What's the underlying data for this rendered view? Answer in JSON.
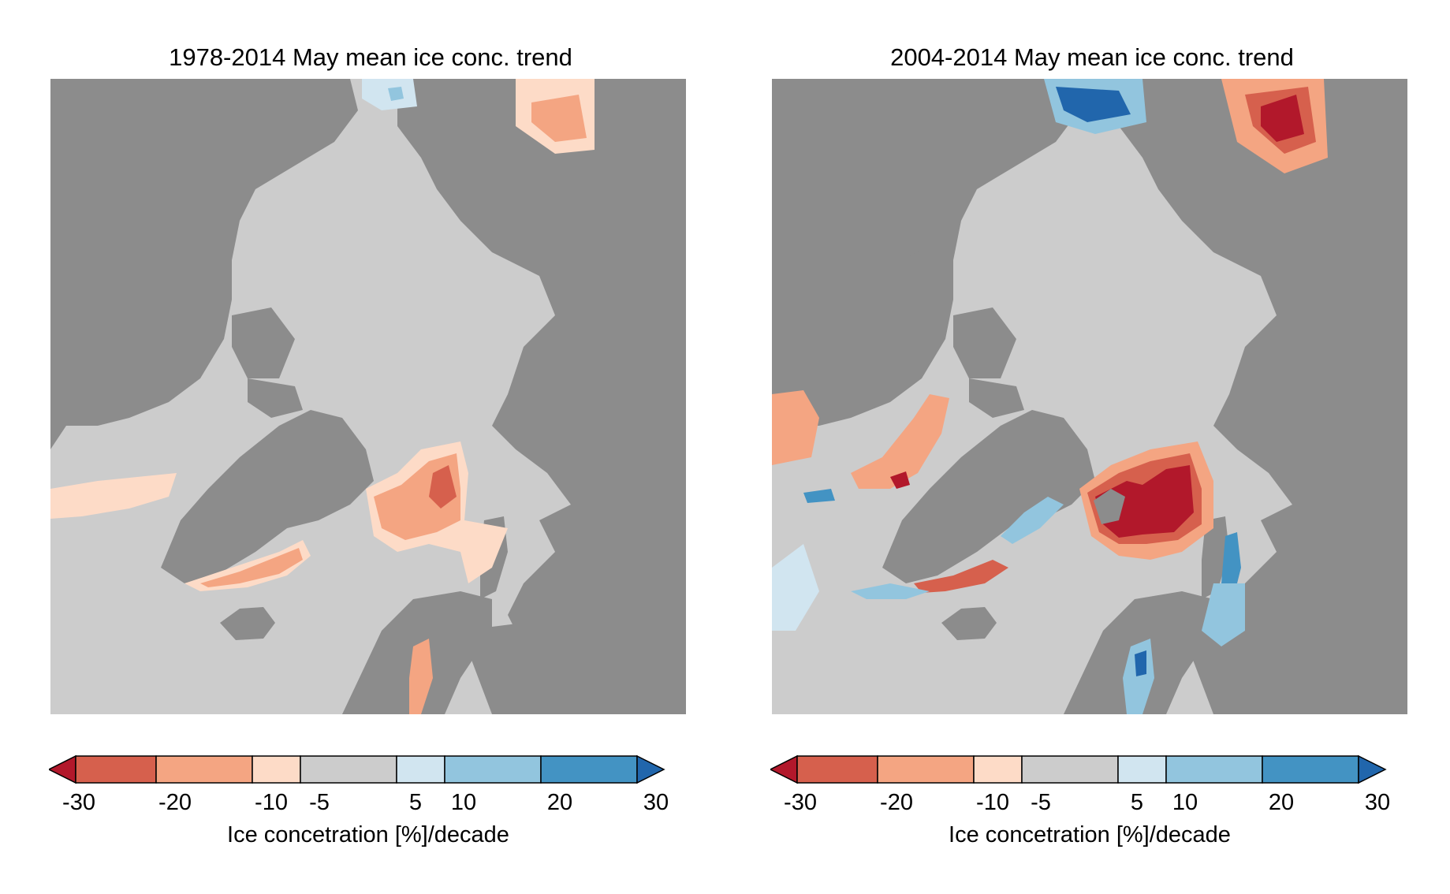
{
  "panels": [
    {
      "title": "1978-2014 May mean ice conc. trend"
    },
    {
      "title": "2004-2014 May mean ice conc. trend"
    }
  ],
  "colorbar": {
    "ticks": [
      "-30",
      "-20",
      "-10",
      "-5",
      "5",
      "10",
      "20",
      "30"
    ],
    "label": "Ice concetration [%]/decade",
    "bins": [
      {
        "range": "<-30",
        "color": "#b2182b"
      },
      {
        "range": "-30 to -20",
        "color": "#d6604d"
      },
      {
        "range": "-20 to -10",
        "color": "#f4a582"
      },
      {
        "range": "-10 to -5",
        "color": "#fddbc7"
      },
      {
        "range": "-5 to 5",
        "color": "#cccccc"
      },
      {
        "range": "5 to 10",
        "color": "#d1e5f0"
      },
      {
        "range": "10 to 20",
        "color": "#92c5de"
      },
      {
        "range": "20 to 30",
        "color": "#4393c3"
      },
      {
        "range": ">30",
        "color": "#2166ac"
      }
    ]
  },
  "colors": {
    "land": "#8c8c8c",
    "ocean_no_trend": "#cccccc"
  }
}
